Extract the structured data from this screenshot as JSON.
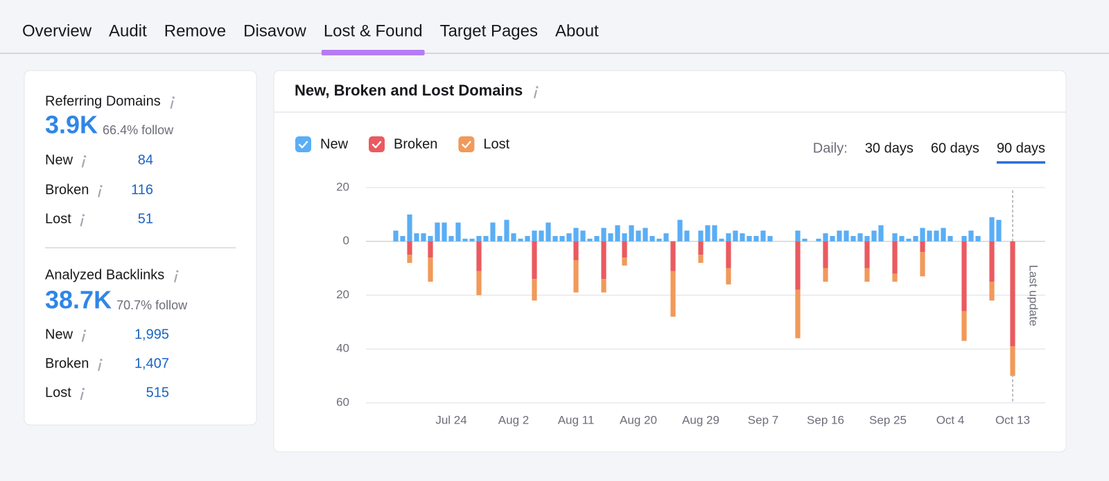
{
  "tabs": [
    "Overview",
    "Audit",
    "Remove",
    "Disavow",
    "Lost & Found",
    "Target Pages",
    "About"
  ],
  "active_tab": 4,
  "summary": [
    {
      "label": "Referring Domains",
      "value": "3.9K",
      "follow": "66.4% follow",
      "rows": [
        {
          "label": "New",
          "value": "84"
        },
        {
          "label": "Broken",
          "value": "116"
        },
        {
          "label": "Lost",
          "value": "51"
        }
      ]
    },
    {
      "label": "Analyzed Backlinks",
      "value": "38.7K",
      "follow": "70.7% follow",
      "rows": [
        {
          "label": "New",
          "value": "1,995"
        },
        {
          "label": "Broken",
          "value": "1,407"
        },
        {
          "label": "Lost",
          "value": "515"
        }
      ]
    }
  ],
  "range": {
    "label": "Daily:",
    "options": [
      "30 days",
      "60 days",
      "90 days"
    ],
    "selected": 2
  },
  "chart_data": {
    "type": "bar",
    "stacked": true,
    "title": "New, Broken and Lost Domains",
    "categories": [
      null,
      null,
      null,
      null,
      null,
      null,
      null,
      null,
      "Jul 24",
      null,
      null,
      null,
      null,
      null,
      null,
      null,
      null,
      "Aug 2",
      null,
      null,
      null,
      null,
      null,
      null,
      null,
      null,
      "Aug 11",
      null,
      null,
      null,
      null,
      null,
      null,
      null,
      null,
      "Aug 20",
      null,
      null,
      null,
      null,
      null,
      null,
      null,
      null,
      "Aug 29",
      null,
      null,
      null,
      null,
      null,
      null,
      null,
      null,
      "Sep 7",
      null,
      null,
      null,
      null,
      null,
      null,
      null,
      null,
      "Sep 16",
      null,
      null,
      null,
      null,
      null,
      null,
      null,
      null,
      "Sep 25",
      null,
      null,
      null,
      null,
      null,
      null,
      null,
      null,
      "Oct 4",
      null,
      null,
      null,
      null,
      null,
      null,
      null,
      null,
      "Oct 13"
    ],
    "series": [
      {
        "name": "New",
        "color": "#5aaef5",
        "values": [
          4,
          2,
          10,
          3,
          3,
          2,
          7,
          7,
          2,
          7,
          1,
          1,
          2,
          2,
          7,
          2,
          8,
          3,
          1,
          2,
          4,
          4,
          7,
          2,
          2,
          3,
          5,
          4,
          1,
          2,
          5,
          3,
          6,
          3,
          6,
          4,
          5,
          2,
          1,
          3,
          0,
          8,
          4,
          0,
          4,
          6,
          6,
          1,
          3,
          4,
          3,
          2,
          2,
          4,
          2,
          0,
          0,
          0,
          4,
          1,
          0,
          1,
          3,
          2,
          4,
          4,
          2,
          3,
          2,
          4,
          6,
          0,
          3,
          2,
          1,
          2,
          5,
          4,
          4,
          5,
          2,
          0,
          2,
          4,
          2,
          0,
          9,
          8,
          0,
          0
        ]
      },
      {
        "name": "Broken",
        "color": "#ea5a60",
        "values": [
          0,
          0,
          -5,
          0,
          0,
          -6,
          0,
          0,
          0,
          0,
          0,
          0,
          -11,
          0,
          0,
          0,
          0,
          0,
          0,
          0,
          -14,
          0,
          0,
          0,
          0,
          0,
          -7,
          0,
          0,
          0,
          -14,
          0,
          0,
          -6,
          0,
          0,
          0,
          0,
          0,
          0,
          -11,
          0,
          0,
          0,
          -5,
          0,
          0,
          0,
          -10,
          0,
          0,
          0,
          0,
          0,
          0,
          0,
          0,
          0,
          -18,
          0,
          0,
          0,
          -10,
          0,
          0,
          0,
          0,
          0,
          -10,
          0,
          0,
          0,
          -12,
          0,
          0,
          0,
          -4,
          0,
          0,
          0,
          0,
          0,
          -26,
          0,
          0,
          0,
          -15,
          0,
          0,
          -39
        ]
      },
      {
        "name": "Lost",
        "color": "#f1995a",
        "values": [
          0,
          0,
          -3,
          0,
          0,
          -9,
          0,
          0,
          0,
          0,
          0,
          0,
          -9,
          0,
          0,
          0,
          0,
          0,
          0,
          0,
          -8,
          0,
          0,
          0,
          0,
          0,
          -12,
          0,
          0,
          0,
          -5,
          0,
          0,
          -3,
          0,
          0,
          0,
          0,
          0,
          0,
          -17,
          0,
          0,
          0,
          -3,
          0,
          0,
          0,
          -6,
          0,
          0,
          0,
          0,
          0,
          0,
          0,
          0,
          0,
          -18,
          0,
          0,
          0,
          -5,
          0,
          0,
          0,
          0,
          0,
          -5,
          0,
          0,
          0,
          -3,
          0,
          0,
          0,
          -9,
          0,
          0,
          0,
          0,
          0,
          -11,
          0,
          0,
          0,
          -7,
          0,
          0,
          -11
        ]
      }
    ],
    "ylim": [
      -60,
      20
    ],
    "yticks": [
      {
        "value": -60,
        "label": "60"
      },
      {
        "value": -40,
        "label": "40"
      },
      {
        "value": -20,
        "label": "20"
      },
      0,
      20
    ],
    "grid": true,
    "annotation": "Last update"
  }
}
